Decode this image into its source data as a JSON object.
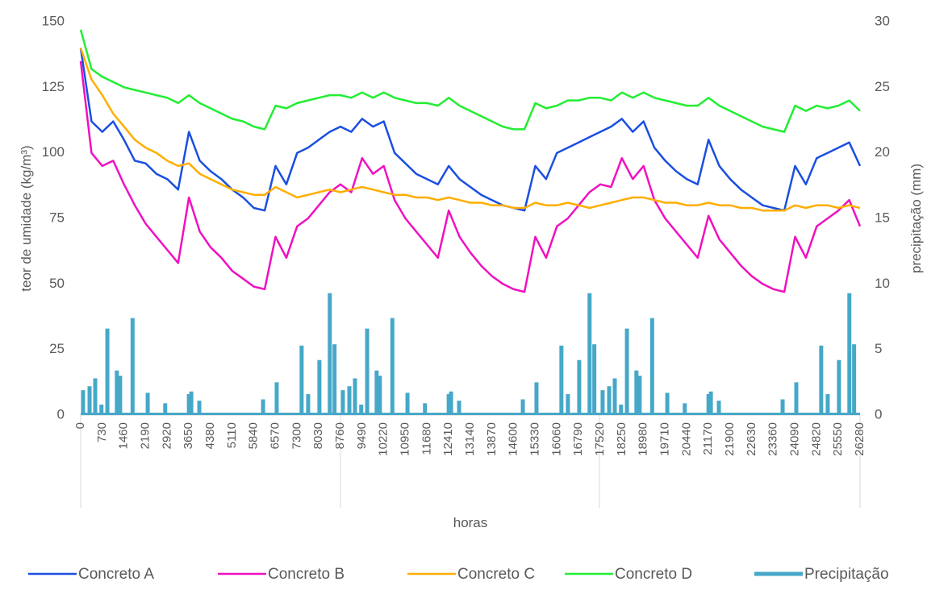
{
  "chart_data": {
    "type": "line",
    "x_label": "horas",
    "y_label": "teor de umidade (kg/m³)",
    "y2_label": "precipitação (mm)",
    "xlim": [
      0,
      26280
    ],
    "xticks": [
      0,
      730,
      1460,
      2190,
      2920,
      3650,
      4380,
      5110,
      5840,
      6570,
      7300,
      8030,
      8760,
      9490,
      10220,
      10950,
      11680,
      12410,
      13140,
      13870,
      14600,
      15330,
      16060,
      16790,
      17520,
      18250,
      18980,
      19710,
      20440,
      21170,
      21900,
      22630,
      23360,
      24090,
      24820,
      25550,
      26280
    ],
    "ylim": [
      0,
      150
    ],
    "yticks": [
      0,
      25,
      50,
      75,
      100,
      125,
      150
    ],
    "y2lim": [
      0,
      30
    ],
    "y2ticks": [
      0,
      5,
      10,
      15,
      20,
      25,
      30
    ],
    "legend": "bottom",
    "x": [
      0,
      365,
      730,
      1095,
      1460,
      1825,
      2190,
      2555,
      2920,
      3285,
      3650,
      4015,
      4380,
      4745,
      5110,
      5475,
      5840,
      6205,
      6570,
      6935,
      7300,
      7665,
      8030,
      8395,
      8760,
      9125,
      9490,
      9855,
      10220,
      10585,
      10950,
      11315,
      11680,
      12045,
      12410,
      12775,
      13140,
      13505,
      13870,
      14235,
      14600,
      14965,
      15330,
      15695,
      16060,
      16425,
      16790,
      17155,
      17520,
      17885,
      18250,
      18615,
      18980,
      19345,
      19710,
      20075,
      20440,
      20805,
      21170,
      21535,
      21900,
      22265,
      22630,
      22995,
      23360,
      23725,
      24090,
      24455,
      24820,
      25185,
      25550,
      25915,
      26280
    ],
    "series": [
      {
        "name": "Concreto A",
        "color": "#1a4fe0",
        "type": "line",
        "values": [
          140,
          112,
          108,
          112,
          105,
          97,
          96,
          92,
          90,
          86,
          108,
          97,
          93,
          90,
          86,
          83,
          79,
          78,
          95,
          88,
          100,
          102,
          105,
          108,
          110,
          108,
          113,
          110,
          112,
          100,
          96,
          92,
          90,
          88,
          95,
          90,
          87,
          84,
          82,
          80,
          79,
          78,
          95,
          90,
          100,
          102,
          104,
          106,
          108,
          110,
          113,
          108,
          112,
          102,
          97,
          93,
          90,
          88,
          105,
          95,
          90,
          86,
          83,
          80,
          79,
          78,
          95,
          88,
          98,
          100,
          102,
          104,
          95
        ]
      },
      {
        "name": "Concreto B",
        "color": "#f010c0",
        "type": "line",
        "values": [
          135,
          100,
          95,
          97,
          88,
          80,
          73,
          68,
          63,
          58,
          83,
          70,
          64,
          60,
          55,
          52,
          49,
          48,
          68,
          60,
          72,
          75,
          80,
          85,
          88,
          85,
          98,
          92,
          95,
          82,
          75,
          70,
          65,
          60,
          78,
          68,
          62,
          57,
          53,
          50,
          48,
          47,
          68,
          60,
          72,
          75,
          80,
          85,
          88,
          87,
          98,
          90,
          95,
          82,
          75,
          70,
          65,
          60,
          76,
          67,
          62,
          57,
          53,
          50,
          48,
          47,
          68,
          60,
          72,
          75,
          78,
          82,
          72
        ]
      },
      {
        "name": "Concreto C",
        "color": "#ffae00",
        "type": "line",
        "values": [
          140,
          128,
          122,
          115,
          110,
          105,
          102,
          100,
          97,
          95,
          96,
          92,
          90,
          88,
          86,
          85,
          84,
          84,
          87,
          85,
          83,
          84,
          85,
          86,
          85,
          86,
          87,
          86,
          85,
          84,
          84,
          83,
          83,
          82,
          83,
          82,
          81,
          81,
          80,
          80,
          79,
          79,
          81,
          80,
          80,
          81,
          80,
          79,
          80,
          81,
          82,
          83,
          83,
          82,
          81,
          81,
          80,
          80,
          81,
          80,
          80,
          79,
          79,
          78,
          78,
          78,
          80,
          79,
          80,
          80,
          79,
          80,
          79
        ]
      },
      {
        "name": "Concreto D",
        "color": "#22ee33",
        "type": "line",
        "values": [
          147,
          132,
          129,
          127,
          125,
          124,
          123,
          122,
          121,
          119,
          122,
          119,
          117,
          115,
          113,
          112,
          110,
          109,
          118,
          117,
          119,
          120,
          121,
          122,
          122,
          121,
          123,
          121,
          123,
          121,
          120,
          119,
          119,
          118,
          121,
          118,
          116,
          114,
          112,
          110,
          109,
          109,
          119,
          117,
          118,
          120,
          120,
          121,
          121,
          120,
          123,
          121,
          123,
          121,
          120,
          119,
          118,
          118,
          121,
          118,
          116,
          114,
          112,
          110,
          109,
          108,
          118,
          116,
          118,
          117,
          118,
          120,
          116
        ]
      },
      {
        "name": "Precipitação",
        "color": "#46a8c8",
        "type": "bar",
        "axis": "y2",
        "x": [
          80,
          300,
          490,
          700,
          900,
          1220,
          1330,
          1750,
          2260,
          2850,
          3650,
          3730,
          4000,
          6150,
          6610,
          7450,
          7670,
          8050,
          8400,
          8560,
          8840,
          9060,
          9250,
          9460,
          9660,
          9980,
          10090,
          10510,
          11020,
          11610,
          12410,
          12490,
          12760,
          14910,
          15370,
          16210,
          16430,
          16810,
          17160,
          17320,
          17600,
          17820,
          18010,
          18220,
          18420,
          18740,
          18850,
          19270,
          19780,
          20370,
          21170,
          21250,
          21520,
          23670,
          24130,
          24970,
          25190,
          25570,
          25920,
          26080
        ],
        "values": [
          1.9,
          2.2,
          2.8,
          0.8,
          6.6,
          3.4,
          3.0,
          7.4,
          1.7,
          0.9,
          1.6,
          1.8,
          1.1,
          1.2,
          2.5,
          5.3,
          1.6,
          4.2,
          9.3,
          5.4,
          1.9,
          2.2,
          2.8,
          0.8,
          6.6,
          3.4,
          3.0,
          7.4,
          1.7,
          0.9,
          1.6,
          1.8,
          1.1,
          1.2,
          2.5,
          5.3,
          1.6,
          4.2,
          9.3,
          5.4,
          1.9,
          2.2,
          2.8,
          0.8,
          6.6,
          3.4,
          3.0,
          7.4,
          1.7,
          0.9,
          1.6,
          1.8,
          1.1,
          1.2,
          2.5,
          5.3,
          1.6,
          4.2,
          9.3,
          5.4
        ]
      }
    ]
  }
}
